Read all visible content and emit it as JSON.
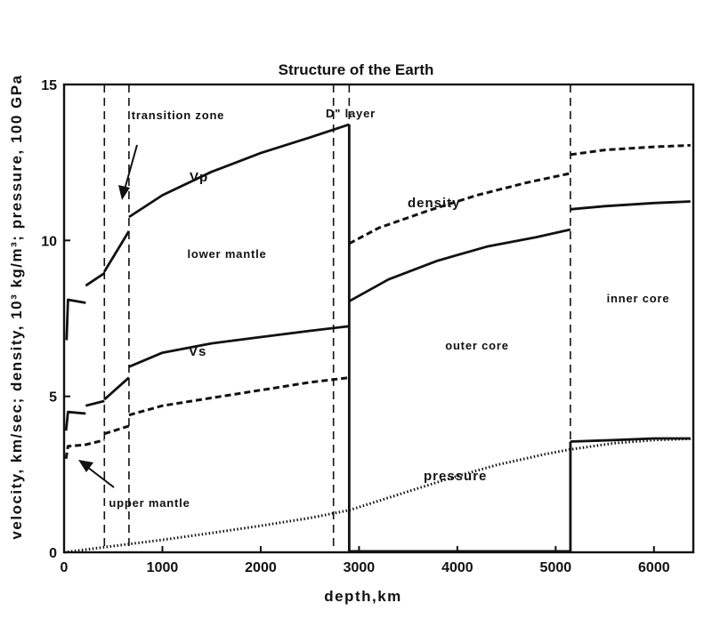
{
  "chart_data": {
    "type": "line",
    "title": "Structure of the Earth",
    "xlabel": "depth,km",
    "ylabel": "velocity, km/sec; density, 10³ kg/m³; pressure, 100 GPa",
    "xlim": [
      0,
      6400
    ],
    "ylim": [
      0,
      15
    ],
    "xticks": [
      0,
      1000,
      2000,
      3000,
      4000,
      5000,
      6000
    ],
    "yticks": [
      0,
      5,
      10,
      15
    ],
    "grid": false,
    "boundaries": [
      410,
      660,
      2740,
      2900,
      5150
    ],
    "series": [
      {
        "name": "Vp",
        "style": "solid",
        "segments": [
          {
            "x": [
              25,
              40,
              220
            ],
            "y": [
              6.8,
              8.1,
              8.0
            ]
          },
          {
            "x": [
              220,
              410
            ],
            "y": [
              8.55,
              8.95
            ]
          },
          {
            "x": [
              410,
              660
            ],
            "y": [
              9.0,
              10.3
            ]
          },
          {
            "x": [
              660,
              1000,
              1500,
              2000,
              2500,
              2900
            ],
            "y": [
              10.75,
              11.45,
              12.2,
              12.8,
              13.3,
              13.72
            ]
          }
        ]
      },
      {
        "name": "Vs",
        "style": "solid",
        "segments": [
          {
            "x": [
              20,
              40,
              220
            ],
            "y": [
              3.9,
              4.5,
              4.45
            ]
          },
          {
            "x": [
              220,
              410
            ],
            "y": [
              4.7,
              4.85
            ]
          },
          {
            "x": [
              410,
              660
            ],
            "y": [
              4.9,
              5.6
            ]
          },
          {
            "x": [
              660,
              1000,
              1500,
              2000,
              2500,
              2900
            ],
            "y": [
              5.95,
              6.4,
              6.7,
              6.9,
              7.1,
              7.25
            ]
          }
        ]
      },
      {
        "name": "density",
        "style": "dashed",
        "segments": [
          {
            "x": [
              20,
              40,
              220,
              410
            ],
            "y": [
              3.0,
              3.4,
              3.45,
              3.6
            ]
          },
          {
            "x": [
              410,
              660
            ],
            "y": [
              3.8,
              4.05
            ]
          },
          {
            "x": [
              660,
              1000,
              1500,
              2000,
              2500,
              2900
            ],
            "y": [
              4.4,
              4.7,
              4.95,
              5.2,
              5.45,
              5.6
            ]
          },
          {
            "x": [
              2900,
              3200,
              3700,
              4200,
              4700,
              5150
            ],
            "y": [
              9.9,
              10.4,
              10.95,
              11.45,
              11.85,
              12.15
            ]
          },
          {
            "x": [
              5150,
              5500,
              6000,
              6371
            ],
            "y": [
              12.75,
              12.9,
              13.0,
              13.05
            ]
          }
        ]
      },
      {
        "name": "outer core Vp",
        "style": "solid",
        "segments": [
          {
            "x": [
              2900,
              3300,
              3800,
              4300,
              4800,
              5150
            ],
            "y": [
              8.05,
              8.75,
              9.35,
              9.8,
              10.1,
              10.35
            ]
          },
          {
            "x": [
              5150,
              5500,
              6000,
              6371
            ],
            "y": [
              11.0,
              11.1,
              11.2,
              11.25
            ]
          }
        ]
      },
      {
        "name": "inner core Vs",
        "style": "solid",
        "segments": [
          {
            "x": [
              5150,
              5600,
              6000,
              6371
            ],
            "y": [
              3.55,
              3.6,
              3.65,
              3.65
            ]
          }
        ]
      },
      {
        "name": "pressure",
        "style": "dotted",
        "segments": [
          {
            "x": [
              0,
              500,
              1000,
              1500,
              2000,
              2500,
              2900,
              3400,
              3900,
              4400,
              4900,
              5150,
              5600,
              6000,
              6371
            ],
            "y": [
              0.0,
              0.2,
              0.4,
              0.62,
              0.85,
              1.1,
              1.35,
              1.85,
              2.35,
              2.8,
              3.15,
              3.3,
              3.5,
              3.6,
              3.64
            ]
          }
        ]
      }
    ],
    "annotations": {
      "transition_zone": "transition zone",
      "d_layer": "D\"  layer",
      "upper_mantle": "upper mantle",
      "lower_mantle": "lower mantle",
      "outer_core": "outer core",
      "inner_core": "inner core",
      "vp": "Vp",
      "vs": "Vs",
      "density": "density",
      "pressure": "pressure"
    }
  }
}
